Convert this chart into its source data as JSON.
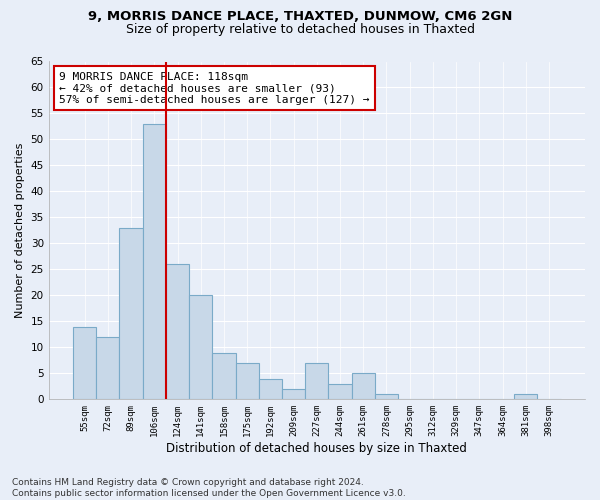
{
  "title1": "9, MORRIS DANCE PLACE, THAXTED, DUNMOW, CM6 2GN",
  "title2": "Size of property relative to detached houses in Thaxted",
  "xlabel": "Distribution of detached houses by size in Thaxted",
  "ylabel": "Number of detached properties",
  "bin_labels": [
    "55sqm",
    "72sqm",
    "89sqm",
    "106sqm",
    "124sqm",
    "141sqm",
    "158sqm",
    "175sqm",
    "192sqm",
    "209sqm",
    "227sqm",
    "244sqm",
    "261sqm",
    "278sqm",
    "295sqm",
    "312sqm",
    "329sqm",
    "347sqm",
    "364sqm",
    "381sqm",
    "398sqm"
  ],
  "bar_values": [
    14,
    12,
    33,
    53,
    26,
    20,
    9,
    7,
    4,
    2,
    7,
    3,
    5,
    1,
    0,
    0,
    0,
    0,
    0,
    1,
    0
  ],
  "bar_color": "#c8d8e8",
  "bar_edge_color": "#7aaac8",
  "subject_line_color": "#cc0000",
  "annotation_text": "9 MORRIS DANCE PLACE: 118sqm\n← 42% of detached houses are smaller (93)\n57% of semi-detached houses are larger (127) →",
  "annotation_box_color": "#ffffff",
  "annotation_box_edge_color": "#cc0000",
  "ylim": [
    0,
    65
  ],
  "yticks": [
    0,
    5,
    10,
    15,
    20,
    25,
    30,
    35,
    40,
    45,
    50,
    55,
    60,
    65
  ],
  "footnote": "Contains HM Land Registry data © Crown copyright and database right 2024.\nContains public sector information licensed under the Open Government Licence v3.0.",
  "bg_color": "#e8eef8",
  "grid_color": "#ffffff",
  "title1_fontsize": 9.5,
  "title2_fontsize": 9,
  "annotation_fontsize": 8,
  "footnote_fontsize": 6.5
}
